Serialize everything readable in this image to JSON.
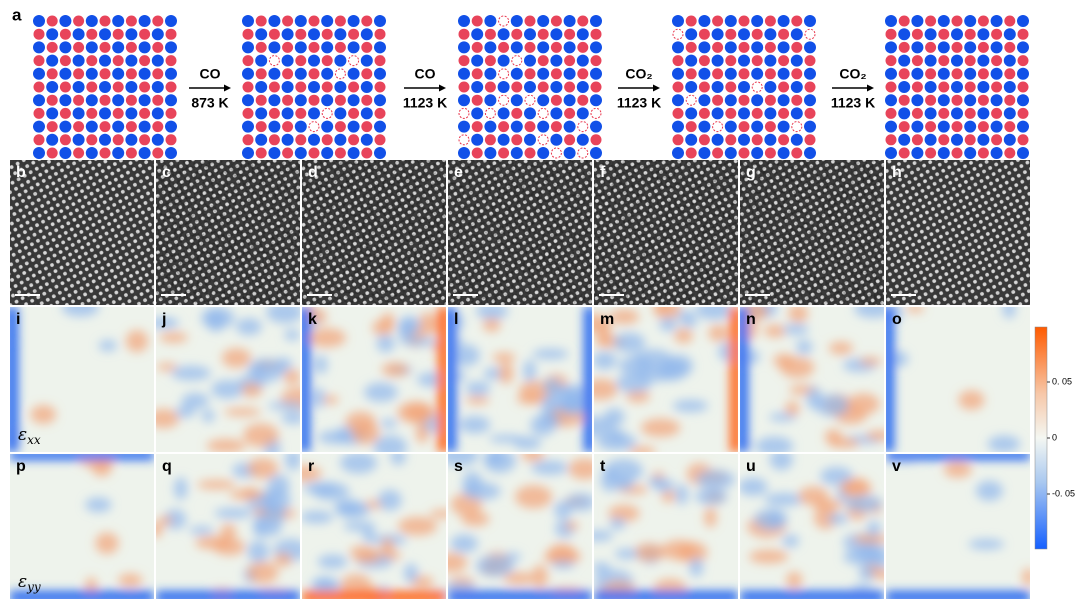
{
  "panel_a_label": "a",
  "arrows": [
    {
      "gas": "CO",
      "temperature": "873 K"
    },
    {
      "gas": "CO",
      "temperature": "1123 K"
    },
    {
      "gas": "CO₂",
      "temperature": "1123 K"
    },
    {
      "gas": "CO₂",
      "temperature": "1123 K"
    }
  ],
  "tem_row": {
    "labels": [
      "b",
      "c",
      "d",
      "e",
      "f",
      "g",
      "h"
    ]
  },
  "strain_xx_row": {
    "labels": [
      "i",
      "j",
      "k",
      "l",
      "m",
      "n",
      "o"
    ],
    "component": {
      "symbol": "ε",
      "subscript": "xx"
    }
  },
  "strain_yy_row": {
    "labels": [
      "p",
      "q",
      "r",
      "s",
      "t",
      "u",
      "v"
    ],
    "component": {
      "symbol": "ε",
      "subscript": "yy"
    }
  },
  "colorbar": {
    "ticks": [
      "0. 05",
      "0",
      "-0. 05"
    ]
  }
}
